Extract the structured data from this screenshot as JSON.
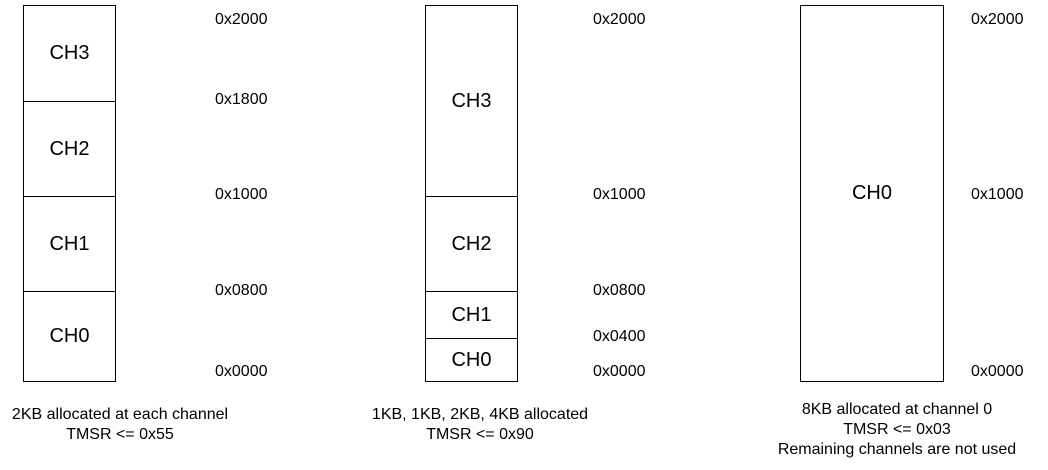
{
  "diagrams": [
    {
      "blocks": [
        "CH3",
        "CH2",
        "CH1",
        "CH0"
      ],
      "addresses": [
        "0x2000",
        "0x1800",
        "0x1000",
        "0x0800",
        "0x0000"
      ],
      "caption": [
        "2KB allocated at each channel",
        "TMSR <= 0x55"
      ]
    },
    {
      "blocks": [
        "CH3",
        "CH2",
        "CH1",
        "CH0"
      ],
      "addresses": [
        "0x2000",
        "0x1000",
        "0x0800",
        "0x0400",
        "0x0000"
      ],
      "caption": [
        "1KB, 1KB, 2KB, 4KB allocated",
        "TMSR <= 0x90"
      ]
    },
    {
      "blocks": [
        "CH0"
      ],
      "addresses": [
        "0x2000",
        "0x1000",
        "0x0000"
      ],
      "caption": [
        "8KB allocated at channel 0",
        "TMSR <= 0x03",
        "Remaining channels are not used"
      ]
    }
  ]
}
